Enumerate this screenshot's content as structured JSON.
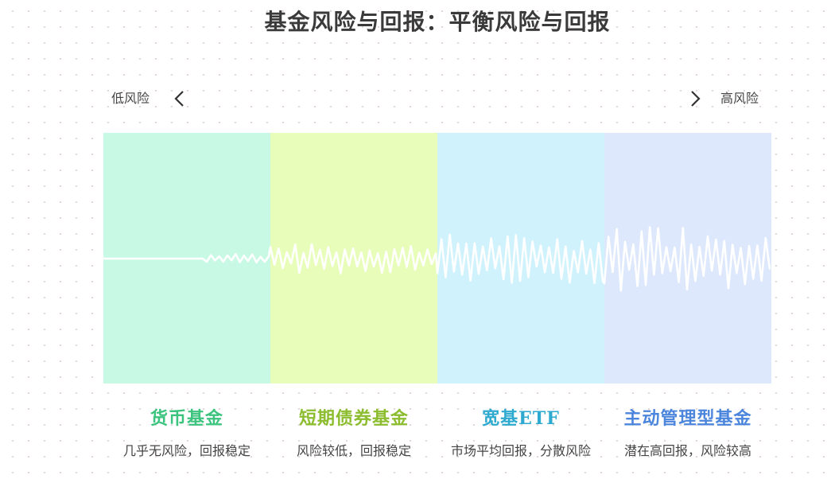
{
  "title": "基金风险与回报：平衡风险与回报",
  "axis": {
    "low_label": "低风险",
    "high_label": "高风险"
  },
  "categories": [
    {
      "name": "货币基金",
      "desc": "几乎无风险，回报稳定",
      "band_color": "#c8f9e4",
      "label_color": "#3cc47f",
      "volatility": 0.6
    },
    {
      "name": "短期债券基金",
      "desc": "风险较低，回报稳定",
      "band_color": "#e8fdb9",
      "label_color": "#8cbd2f",
      "volatility": 1.8
    },
    {
      "name": "宽基ETF",
      "desc": "市场平均回报，分散风险",
      "band_color": "#d0f2fc",
      "label_color": "#2ea9cf",
      "volatility": 3.0
    },
    {
      "name": "主动管理型基金",
      "desc": "潜在高回报，风险较高",
      "band_color": "#dde8fc",
      "label_color": "#4b85dc",
      "volatility": 4.2
    }
  ]
}
